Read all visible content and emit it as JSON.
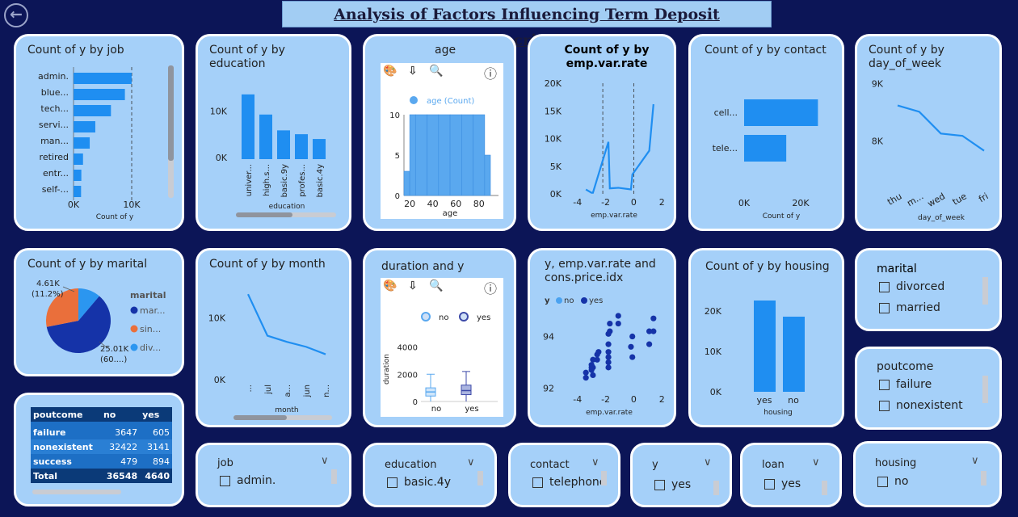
{
  "header": {
    "title": "Analysis of Factors Influencing Term Deposit Subscription"
  },
  "colors": {
    "accent": "#1f8ef1",
    "dark_series": "#1533a8",
    "orange": "#ea6f3b",
    "light_series": "#2b96f0"
  },
  "cards": {
    "job": {
      "title": "Count of y by job",
      "xlabel": "Count of y",
      "ticks": [
        "0K",
        "10K"
      ],
      "chart_data": {
        "type": "bar",
        "orientation": "horizontal",
        "categories": [
          "admin.",
          "blue...",
          "tech...",
          "servi...",
          "man...",
          "retired",
          "entr...",
          "self-..."
        ],
        "values": [
          10400,
          9200,
          6700,
          3900,
          2900,
          1700,
          1400,
          1350
        ],
        "xlim": [
          0,
          12500
        ]
      }
    },
    "education": {
      "title": "Count of y by education",
      "xlabel": "education",
      "ticks": [
        "10K",
        "0K"
      ],
      "chart_data": {
        "type": "bar",
        "categories": [
          "univer...",
          "high.s...",
          "basic.9y",
          "profes...",
          "basic.4y"
        ],
        "values": [
          13500,
          9300,
          6000,
          5200,
          4200
        ],
        "ylim": [
          0,
          16000
        ]
      }
    },
    "age": {
      "title": "age",
      "legend": "age (Count)",
      "xlabel": "age",
      "yticks": [
        "10",
        "5",
        "0"
      ],
      "xticks": [
        "20",
        "40",
        "60",
        "80"
      ],
      "chart_data": {
        "type": "bar",
        "x": [
          17,
          22,
          32,
          42,
          52,
          62,
          72,
          82,
          92
        ],
        "values": [
          3,
          10,
          10,
          10,
          10,
          10,
          10,
          10,
          5
        ],
        "ylim": [
          0,
          10
        ],
        "xlim": [
          15,
          97
        ]
      }
    },
    "emp": {
      "title": "Count of y by emp.var.rate",
      "xlabel": "emp.var.rate",
      "yticks": [
        "20K",
        "15K",
        "10K",
        "5K",
        "0K"
      ],
      "xticks": [
        "-4",
        "-2",
        "0",
        "2"
      ],
      "chart_data": {
        "type": "line",
        "x": [
          -3.4,
          -3.0,
          -2.9,
          -1.8,
          -1.7,
          -1.1,
          -0.2,
          -0.1,
          1.1,
          1.4
        ],
        "values": [
          800,
          200,
          200,
          9400,
          1000,
          1100,
          800,
          3500,
          7800,
          16200
        ],
        "ylim": [
          0,
          20000
        ],
        "xlim": [
          -4.5,
          2.5
        ]
      }
    },
    "contact": {
      "title": "Count of y by contact",
      "xlabel": "Count of y",
      "ticks": [
        "0K",
        "20K"
      ],
      "chart_data": {
        "type": "bar",
        "orientation": "horizontal",
        "categories": [
          "cell...",
          "tele..."
        ],
        "values": [
          26100,
          14900
        ],
        "xlim": [
          0,
          32000
        ]
      }
    },
    "dow": {
      "title": "Count of y by day_of_week",
      "xlabel": "day_of_week",
      "yticks": [
        "9K",
        "8K"
      ],
      "chart_data": {
        "type": "line",
        "categories": [
          "thu",
          "m...",
          "wed",
          "tue",
          "fri"
        ],
        "values": [
          8620,
          8510,
          8130,
          8090,
          7830
        ],
        "ylim": [
          7500,
          9050
        ]
      }
    },
    "marital": {
      "title": "Count of y by marital",
      "legend_title": "marital",
      "legend": [
        "mar...",
        "sin...",
        "div..."
      ],
      "label_small": "4.61K",
      "label_small_pct": "(11.2%)",
      "label_big": "25.01K",
      "label_big_pct": "(60....)",
      "chart_data": {
        "type": "pie",
        "categories": [
          "married",
          "single",
          "divorced"
        ],
        "values": [
          25010,
          11570,
          4610
        ]
      }
    },
    "month": {
      "title": "Count of y by month",
      "xlabel": "month",
      "yticks": [
        "10K",
        "0K"
      ],
      "chart_data": {
        "type": "line",
        "categories": [
          "...",
          "jul",
          "a...",
          "jun",
          "n..."
        ],
        "values": [
          13800,
          7100,
          6100,
          5300,
          4100
        ],
        "ylim": [
          0,
          15000
        ]
      }
    },
    "duration": {
      "title": "duration and y",
      "legend": [
        "no",
        "yes"
      ],
      "ylabel": "duration",
      "yticks": [
        "4000",
        "2000",
        "0"
      ],
      "xticks": [
        "no",
        "yes"
      ],
      "chart_data": {
        "type": "box",
        "categories": [
          "no",
          "yes"
        ],
        "series": [
          {
            "name": "no",
            "min": 0,
            "q1": 400,
            "median": 700,
            "q3": 1000,
            "max": 2000
          },
          {
            "name": "yes",
            "min": 0,
            "q1": 500,
            "median": 800,
            "q3": 1200,
            "max": 2200
          }
        ],
        "ylim": [
          0,
          4800
        ]
      }
    },
    "scatter": {
      "title": "y, emp.var.rate and cons.price.idx",
      "legend_title": "y",
      "legend": [
        "no",
        "yes"
      ],
      "xlabel": "emp.var.rate",
      "yticks": [
        "94",
        "92"
      ],
      "xticks": [
        "-4",
        "-2",
        "0",
        "2"
      ],
      "chart_data": {
        "type": "scatter",
        "x": [
          -3.4,
          -3.4,
          -3.0,
          -3.0,
          -3.0,
          -2.9,
          -2.9,
          -2.9,
          -2.6,
          -2.6,
          -2.5,
          -1.8,
          -1.8,
          -1.8,
          -1.8,
          -1.8,
          -1.8,
          -1.7,
          -1.7,
          -1.1,
          -1.1,
          -0.2,
          -0.1,
          -0.1,
          1.1,
          1.1,
          1.4,
          1.4
        ],
        "y": [
          92.4,
          92.6,
          92.7,
          92.8,
          92.9,
          92.5,
          92.8,
          93.1,
          93.1,
          93.3,
          93.4,
          92.8,
          93.0,
          93.2,
          93.4,
          93.7,
          94.1,
          94.5,
          94.2,
          94.5,
          94.8,
          93.6,
          94.0,
          93.2,
          94.2,
          93.7,
          94.7,
          94.2
        ],
        "xlim": [
          -4.5,
          2.5
        ],
        "ylim": [
          91.7,
          95.3
        ]
      }
    },
    "housing": {
      "title": "Count of y by housing",
      "xlabel": "housing",
      "yticks": [
        "20K",
        "10K",
        "0K"
      ],
      "chart_data": {
        "type": "bar",
        "categories": [
          "yes",
          "no"
        ],
        "values": [
          22600,
          18600
        ],
        "ylim": [
          0,
          26000
        ]
      }
    }
  },
  "toolbar": {
    "palette": "🎨",
    "sort": "⇩",
    "zoom": "🔍",
    "info": "ⓘ"
  },
  "table": {
    "headers": [
      "poutcome",
      "no",
      "yes"
    ],
    "rows": [
      [
        "failure",
        "3647",
        "605"
      ],
      [
        "nonexistent",
        "32422",
        "3141"
      ],
      [
        "success",
        "479",
        "894"
      ]
    ],
    "total": [
      "Total",
      "36548",
      "4640"
    ]
  },
  "slicers": {
    "marital": {
      "title": "marital",
      "options": [
        "divorced",
        "married"
      ]
    },
    "poutcome": {
      "title": "poutcome",
      "options": [
        "failure",
        "nonexistent"
      ]
    },
    "job": {
      "title": "job",
      "value": "admin."
    },
    "education": {
      "title": "education",
      "value": "basic.4y"
    },
    "contact": {
      "title": "contact",
      "value": "telephone"
    },
    "y": {
      "title": "y",
      "value": "yes"
    },
    "loan": {
      "title": "loan",
      "value": "yes"
    },
    "housing": {
      "title": "housing",
      "value": "no"
    }
  }
}
